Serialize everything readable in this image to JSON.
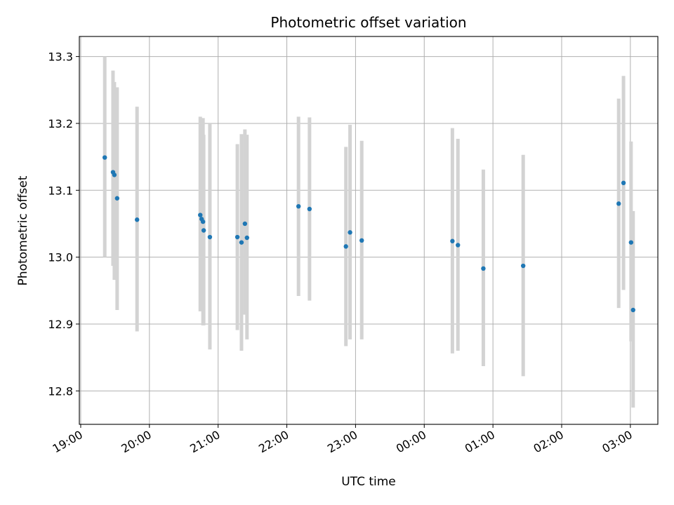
{
  "chart_data": {
    "type": "scatter",
    "title": "Photometric offset variation",
    "xlabel": "UTC time",
    "ylabel": "Photometric offset",
    "x_unit": "hours since 19:00 UTC",
    "xlim": [
      -0.02,
      8.4
    ],
    "ylim": [
      12.75,
      13.33
    ],
    "grid": true,
    "x_ticks": [
      {
        "value": 0,
        "label": "19:00"
      },
      {
        "value": 1,
        "label": "20:00"
      },
      {
        "value": 2,
        "label": "21:00"
      },
      {
        "value": 3,
        "label": "22:00"
      },
      {
        "value": 4,
        "label": "23:00"
      },
      {
        "value": 5,
        "label": "00:00"
      },
      {
        "value": 6,
        "label": "01:00"
      },
      {
        "value": 7,
        "label": "02:00"
      },
      {
        "value": 8,
        "label": "03:00"
      }
    ],
    "y_ticks": [
      {
        "value": 12.8,
        "label": "12.8"
      },
      {
        "value": 12.9,
        "label": "12.9"
      },
      {
        "value": 13.0,
        "label": "13.0"
      },
      {
        "value": 13.1,
        "label": "13.1"
      },
      {
        "value": 13.2,
        "label": "13.2"
      },
      {
        "value": 13.3,
        "label": "13.3"
      }
    ],
    "marker_color": "#1f77b4",
    "errorbar_color": "#d3d3d3",
    "points": [
      {
        "x": 0.35,
        "y": 13.149,
        "lo": 13.0,
        "hi": 13.3
      },
      {
        "x": 0.47,
        "y": 13.127,
        "lo": 12.987,
        "hi": 13.279
      },
      {
        "x": 0.49,
        "y": 13.123,
        "lo": 12.966,
        "hi": 13.262
      },
      {
        "x": 0.53,
        "y": 13.088,
        "lo": 12.921,
        "hi": 13.254
      },
      {
        "x": 0.82,
        "y": 13.056,
        "lo": 12.889,
        "hi": 13.225
      },
      {
        "x": 1.74,
        "y": 13.063,
        "lo": 12.919,
        "hi": 13.21
      },
      {
        "x": 1.76,
        "y": 13.057,
        "lo": 12.921,
        "hi": 13.208
      },
      {
        "x": 1.78,
        "y": 13.053,
        "lo": 12.898,
        "hi": 13.208
      },
      {
        "x": 1.79,
        "y": 13.04,
        "lo": 12.898,
        "hi": 13.183
      },
      {
        "x": 1.88,
        "y": 13.03,
        "lo": 12.862,
        "hi": 13.2
      },
      {
        "x": 2.28,
        "y": 13.03,
        "lo": 12.891,
        "hi": 13.169
      },
      {
        "x": 2.34,
        "y": 13.022,
        "lo": 12.86,
        "hi": 13.184
      },
      {
        "x": 2.39,
        "y": 13.05,
        "lo": 12.914,
        "hi": 13.191
      },
      {
        "x": 2.42,
        "y": 13.029,
        "lo": 12.877,
        "hi": 13.183
      },
      {
        "x": 3.17,
        "y": 13.076,
        "lo": 12.942,
        "hi": 13.21
      },
      {
        "x": 3.33,
        "y": 13.072,
        "lo": 12.935,
        "hi": 13.209
      },
      {
        "x": 3.86,
        "y": 13.016,
        "lo": 12.867,
        "hi": 13.165
      },
      {
        "x": 3.92,
        "y": 13.037,
        "lo": 12.877,
        "hi": 13.198
      },
      {
        "x": 4.09,
        "y": 13.025,
        "lo": 12.877,
        "hi": 13.174
      },
      {
        "x": 5.41,
        "y": 13.024,
        "lo": 12.856,
        "hi": 13.193
      },
      {
        "x": 5.49,
        "y": 13.018,
        "lo": 12.86,
        "hi": 13.177
      },
      {
        "x": 5.86,
        "y": 12.983,
        "lo": 12.837,
        "hi": 13.131
      },
      {
        "x": 6.44,
        "y": 12.987,
        "lo": 12.822,
        "hi": 13.153
      },
      {
        "x": 7.83,
        "y": 13.08,
        "lo": 12.924,
        "hi": 13.237
      },
      {
        "x": 7.9,
        "y": 13.111,
        "lo": 12.951,
        "hi": 13.271
      },
      {
        "x": 8.01,
        "y": 13.022,
        "lo": 12.874,
        "hi": 13.173
      },
      {
        "x": 8.04,
        "y": 12.921,
        "lo": 12.775,
        "hi": 13.069
      }
    ]
  }
}
